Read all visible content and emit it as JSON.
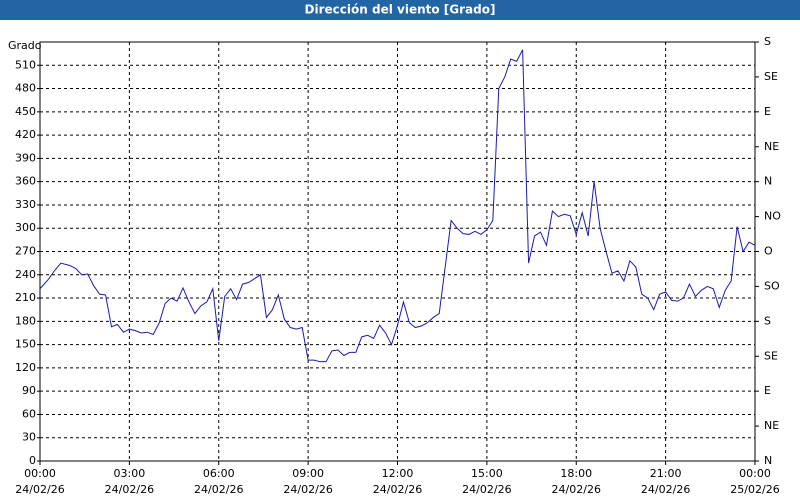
{
  "chart_data": {
    "type": "line",
    "title": "Dirección del viento [Grado]",
    "y_label": "Grado",
    "color": "#1c1ca8",
    "grid": true,
    "x": [
      0,
      0.3,
      0.5,
      0.7,
      1,
      1.2,
      1.4,
      1.6,
      1.8,
      2,
      2.2,
      2.4,
      2.6,
      2.8,
      3,
      3.2,
      3.4,
      3.6,
      3.8,
      4,
      4.2,
      4.4,
      4.6,
      4.8,
      5,
      5.2,
      5.4,
      5.6,
      5.8,
      6,
      6.2,
      6.4,
      6.6,
      6.8,
      7,
      7.2,
      7.4,
      7.6,
      7.8,
      8,
      8.2,
      8.4,
      8.6,
      8.8,
      9,
      9.2,
      9.4,
      9.6,
      9.8,
      10,
      10.2,
      10.4,
      10.6,
      10.8,
      11,
      11.2,
      11.4,
      11.6,
      11.8,
      12,
      12.2,
      12.4,
      12.6,
      12.8,
      13,
      13.2,
      13.4,
      13.6,
      13.8,
      14,
      14.2,
      14.4,
      14.6,
      14.8,
      15,
      15.2,
      15.4,
      15.6,
      15.8,
      16,
      16.2,
      16.4,
      16.6,
      16.8,
      17,
      17.2,
      17.4,
      17.6,
      17.8,
      18,
      18.2,
      18.4,
      18.6,
      18.8,
      19,
      19.2,
      19.4,
      19.6,
      19.8,
      20,
      20.2,
      20.4,
      20.6,
      20.8,
      21,
      21.2,
      21.4,
      21.6,
      21.8,
      22,
      22.2,
      22.4,
      22.6,
      22.8,
      23,
      23.2,
      23.4,
      23.6,
      23.8,
      24
    ],
    "values": [
      222,
      235,
      246,
      255,
      252,
      248,
      240,
      241,
      226,
      215,
      214,
      173,
      176,
      166,
      170,
      168,
      165,
      166,
      163,
      178,
      203,
      210,
      206,
      223,
      205,
      190,
      200,
      205,
      222,
      155,
      212,
      222,
      208,
      228,
      230,
      235,
      240,
      185,
      195,
      214,
      183,
      172,
      170,
      172,
      130,
      130,
      128,
      128,
      142,
      143,
      136,
      140,
      140,
      160,
      162,
      158,
      175,
      165,
      150,
      175,
      205,
      178,
      172,
      174,
      178,
      185,
      190,
      250,
      310,
      300,
      293,
      292,
      296,
      292,
      298,
      310,
      480,
      495,
      518,
      515,
      530,
      255,
      290,
      295,
      278,
      322,
      315,
      318,
      316,
      292,
      320,
      290,
      360,
      300,
      270,
      242,
      245,
      232,
      258,
      250,
      215,
      210,
      195,
      215,
      218,
      207,
      206,
      210,
      228,
      212,
      220,
      225,
      222,
      198,
      220,
      232,
      302,
      270,
      282,
      278
    ],
    "xlim": [
      0,
      24
    ],
    "xticks": [
      {
        "value": 0,
        "label": "00:00"
      },
      {
        "value": 3,
        "label": "03:00"
      },
      {
        "value": 6,
        "label": "06:00"
      },
      {
        "value": 9,
        "label": "09:00"
      },
      {
        "value": 12,
        "label": "12:00"
      },
      {
        "value": 15,
        "label": "15:00"
      },
      {
        "value": 18,
        "label": "18:00"
      },
      {
        "value": 21,
        "label": "21:00"
      },
      {
        "value": 24,
        "label": "00:00"
      }
    ],
    "xtick_dates": [
      "24/02/26",
      "24/02/26",
      "24/02/26",
      "24/02/26",
      "24/02/26",
      "24/02/26",
      "24/02/26",
      "24/02/26",
      "25/02/26"
    ],
    "ylim": [
      0,
      540
    ],
    "yticks": [
      0,
      30,
      60,
      90,
      120,
      150,
      180,
      210,
      240,
      270,
      300,
      330,
      360,
      390,
      420,
      450,
      480,
      510
    ],
    "y2lim": [
      0,
      540
    ],
    "y2ticks": [
      {
        "value": 540,
        "label": "S"
      },
      {
        "value": 495,
        "label": "SE"
      },
      {
        "value": 450,
        "label": "E"
      },
      {
        "value": 405,
        "label": "NE"
      },
      {
        "value": 360,
        "label": "N"
      },
      {
        "value": 315,
        "label": "NO"
      },
      {
        "value": 270,
        "label": "O"
      },
      {
        "value": 225,
        "label": "SO"
      },
      {
        "value": 180,
        "label": "S"
      },
      {
        "value": 135,
        "label": "SE"
      },
      {
        "value": 90,
        "label": "E"
      },
      {
        "value": 45,
        "label": "NE"
      },
      {
        "value": 0,
        "label": "N"
      }
    ]
  }
}
